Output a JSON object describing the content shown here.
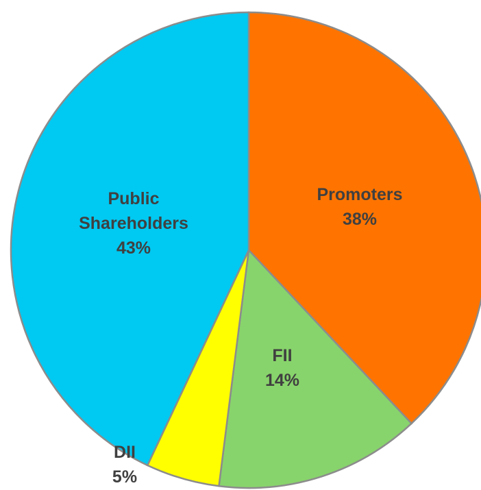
{
  "chart_data": {
    "type": "pie",
    "categories": [
      "Promoters",
      "FII",
      "DII",
      "Public Shareholders"
    ],
    "values": [
      38,
      14,
      5,
      43
    ],
    "value_labels": [
      "38%",
      "14%",
      "5%",
      "43%"
    ],
    "colors": [
      "#ff7400",
      "#88d46c",
      "#ffff00",
      "#00c9f2"
    ]
  }
}
